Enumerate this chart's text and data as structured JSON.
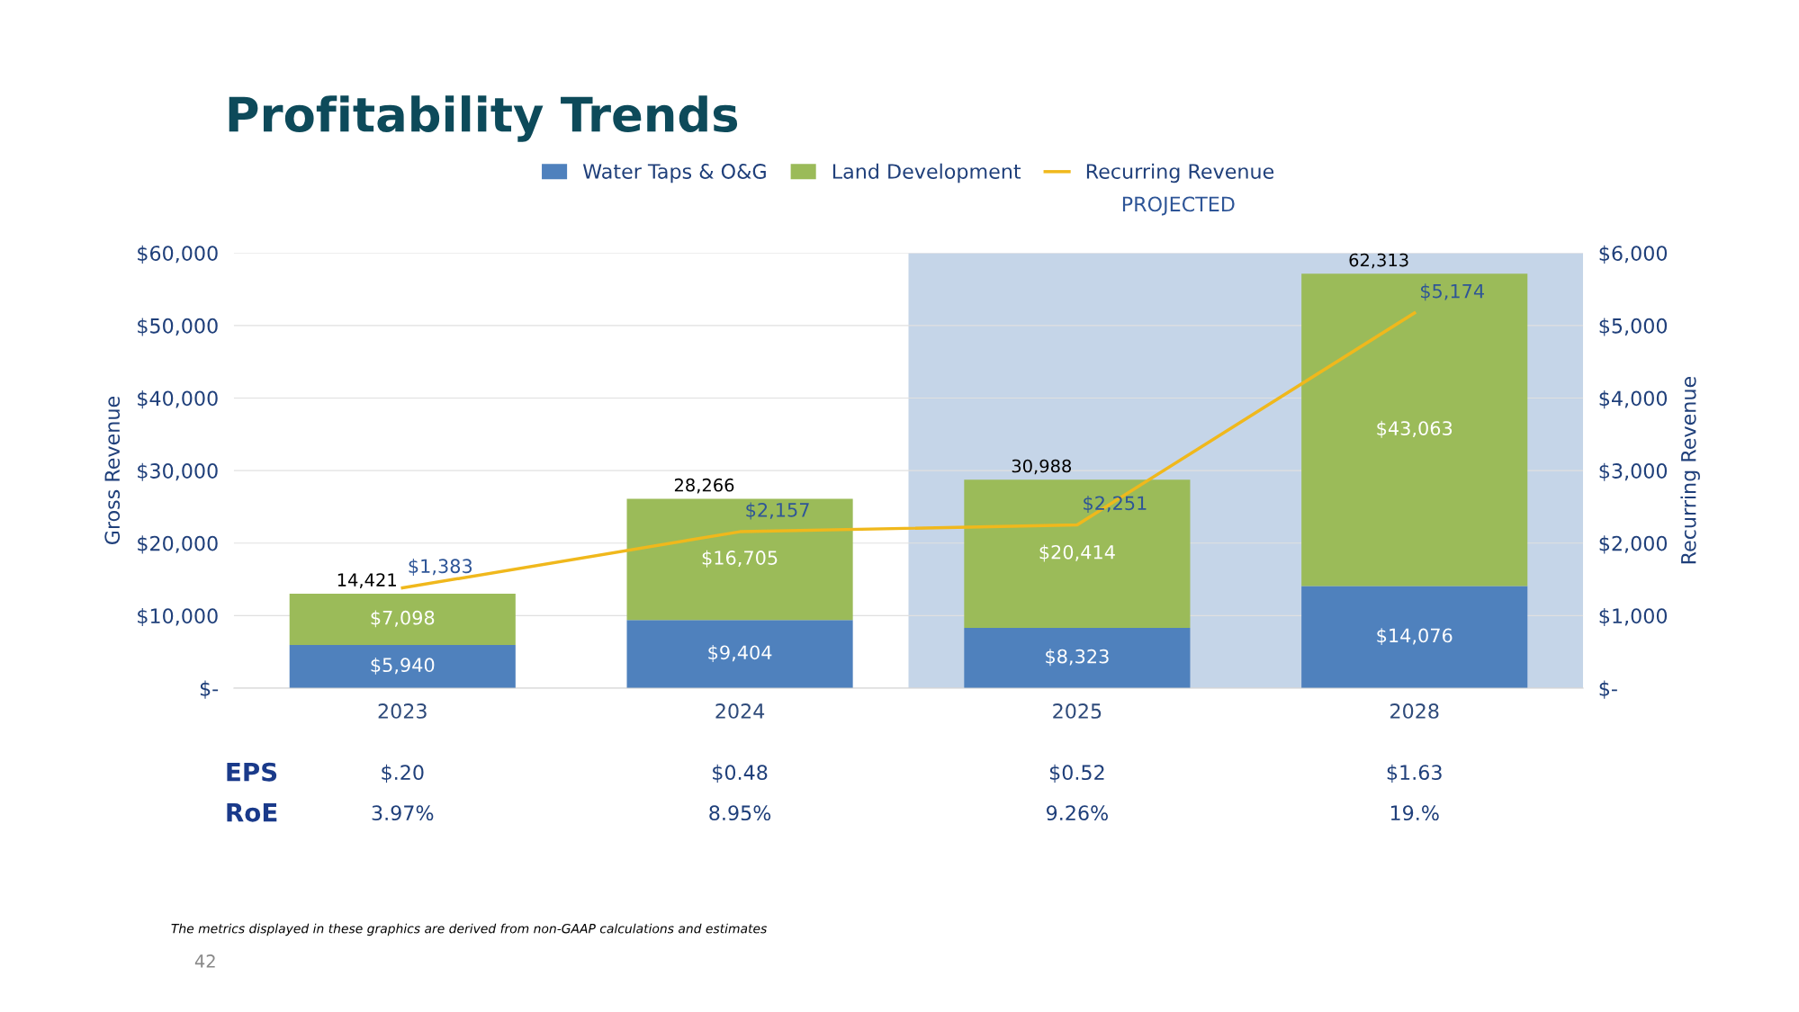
{
  "chart_data": {
    "type": "bar",
    "title": "Profitability Trends",
    "categories": [
      "2023",
      "2024",
      "2025",
      "2028"
    ],
    "stacked": true,
    "series": [
      {
        "name": "Water Taps & O&G",
        "color": "#4f81bd",
        "values": [
          5940,
          9404,
          8323,
          14076
        ],
        "value_labels": [
          "$5,940",
          "$9,404",
          "$8,323",
          "$14,076"
        ]
      },
      {
        "name": "Land Development",
        "color": "#9bbb59",
        "values": [
          7098,
          16705,
          20414,
          43063
        ],
        "value_labels": [
          "$7,098",
          "$16,705",
          "$20,414",
          "$43,063"
        ]
      },
      {
        "name": "Recurring Revenue",
        "type": "line",
        "axis": "y2",
        "color": "#f0b81c",
        "values": [
          1383,
          2157,
          2251,
          5174
        ],
        "value_labels": [
          "$1,383",
          "$2,157",
          "$2,251",
          "$5,174"
        ]
      }
    ],
    "ylabel": "Gross Revenue",
    "y2label": "Recurring Revenue",
    "ylim": [
      0,
      60000
    ],
    "yticks": [
      {
        "value": 0,
        "label": "$-"
      },
      {
        "value": 10000,
        "label": "$10,000"
      },
      {
        "value": 20000,
        "label": "$20,000"
      },
      {
        "value": 30000,
        "label": "$30,000"
      },
      {
        "value": 40000,
        "label": "$40,000"
      },
      {
        "value": 50000,
        "label": "$50,000"
      },
      {
        "value": 60000,
        "label": "$60,000"
      }
    ],
    "y2lim": [
      0,
      6000
    ],
    "y2ticks": [
      {
        "value": 0,
        "label": "$-"
      },
      {
        "value": 1000,
        "label": "$1,000"
      },
      {
        "value": 2000,
        "label": "$2,000"
      },
      {
        "value": 3000,
        "label": "$3,000"
      },
      {
        "value": 4000,
        "label": "$4,000"
      },
      {
        "value": 5000,
        "label": "$5,000"
      },
      {
        "value": 6000,
        "label": "$6,000"
      }
    ],
    "bands": [
      {
        "axis": "x",
        "from": "2025",
        "to": "2028",
        "label": "PROJECTED",
        "color": "#c5d5e8"
      }
    ],
    "grid": "y",
    "legend": "top",
    "annotations": [
      {
        "text": "14,421",
        "x": "2023",
        "y": 13038
      },
      {
        "text": "28,266",
        "x": "2024",
        "y": 26109
      },
      {
        "text": "30,988",
        "x": "2025",
        "y": 28737
      },
      {
        "text": "62,313",
        "x": "2028",
        "y": 57139
      },
      "EPS",
      "$.20",
      "$0.48",
      "$0.52",
      "$1.63",
      "RoE",
      "3.97%",
      "8.95%",
      "9.26%",
      "19.%",
      "The metrics displayed in these graphics are derived from non-GAAP calculations and estimates",
      "42"
    ]
  }
}
